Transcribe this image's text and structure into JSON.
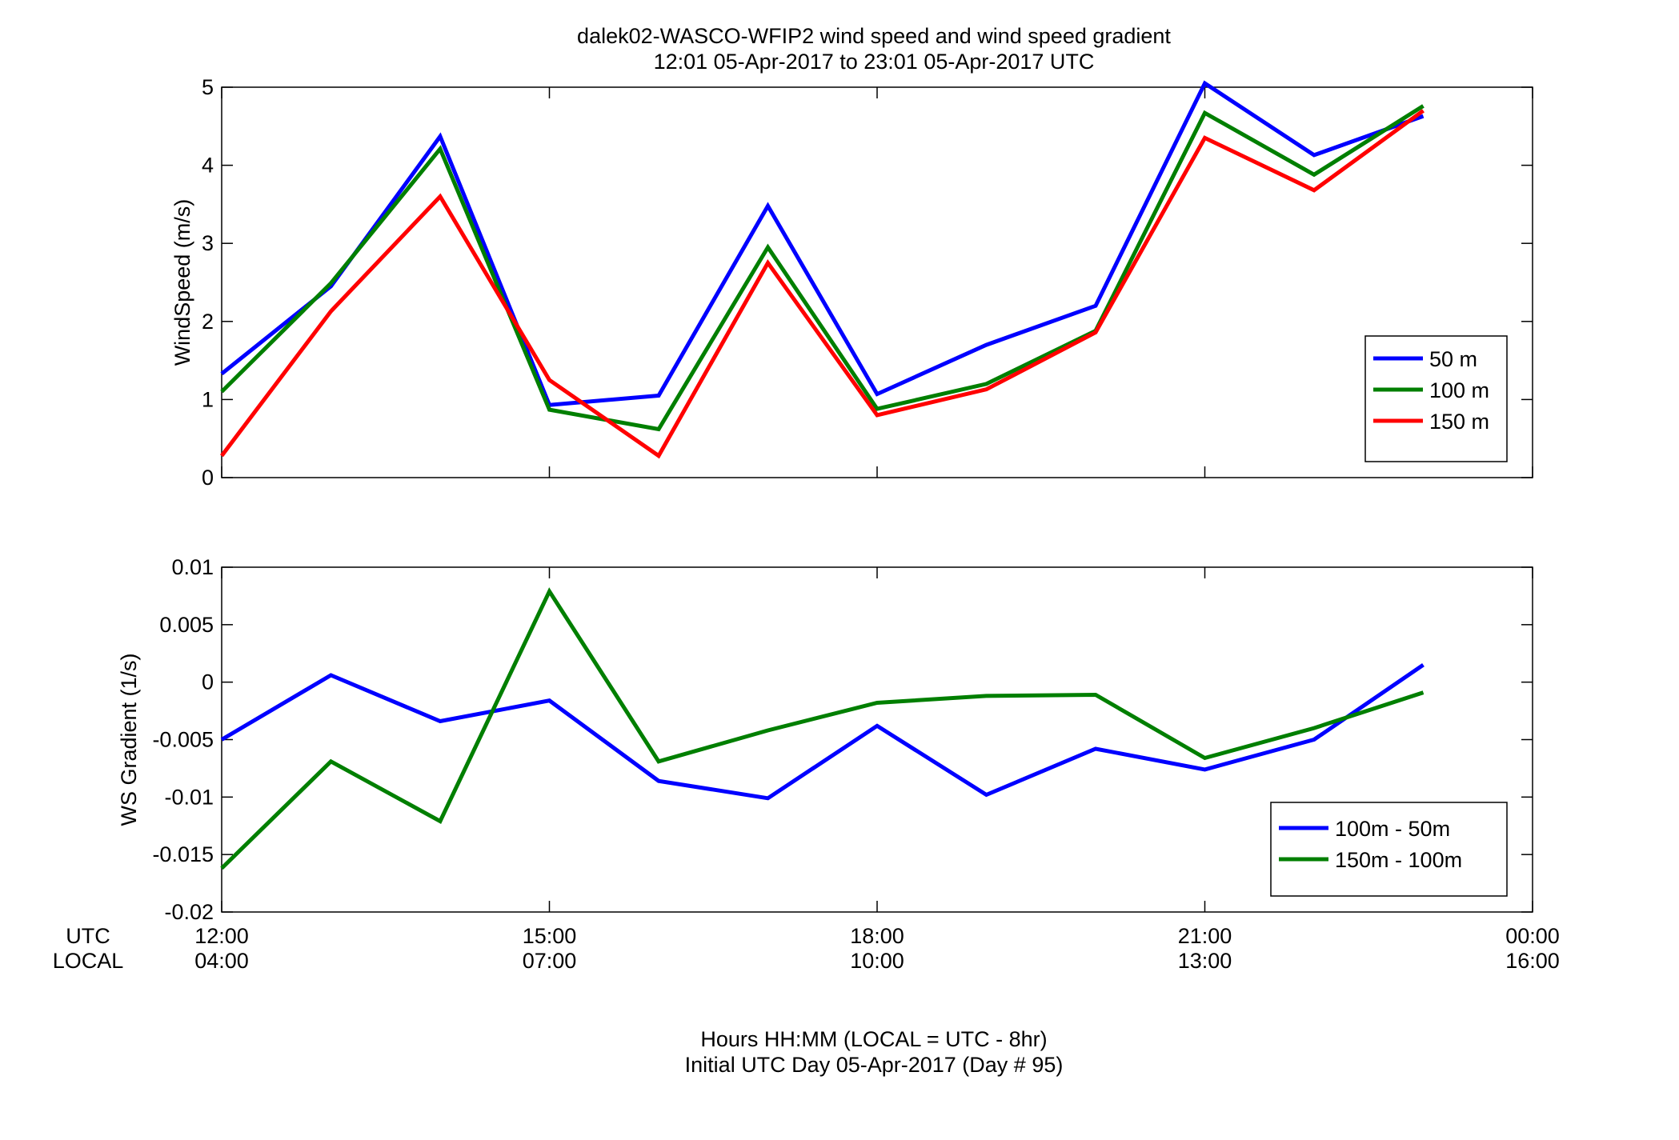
{
  "figure": {
    "title_line1": "dalek02-WASCO-WFIP2  wind speed and wind speed gradient",
    "title_line2": "12:01 05-Apr-2017 to 23:01 05-Apr-2017  UTC",
    "xlabel_line1": "Hours HH:MM  (LOCAL = UTC - 8hr)",
    "xlabel_line2": "Initial UTC Day 05-Apr-2017 (Day # 95)",
    "row_label_utc": "UTC",
    "row_label_local": "LOCAL"
  },
  "chart_data": [
    {
      "type": "line",
      "title": "",
      "ylabel": "WindSpeed (m/s)",
      "xlim": [
        12,
        24
      ],
      "ylim": [
        0,
        5
      ],
      "yticks": [
        0,
        1,
        2,
        3,
        4,
        5
      ],
      "ytick_labels": [
        "0",
        "1",
        "2",
        "3",
        "4",
        "5"
      ],
      "grid": false,
      "legend": "bottom-right",
      "x": [
        12,
        13,
        14,
        15,
        16,
        17,
        18,
        19,
        20,
        21,
        22,
        23
      ],
      "series": [
        {
          "name": "50 m",
          "color": "#0000ff",
          "values": [
            1.33,
            2.45,
            4.37,
            0.93,
            1.05,
            3.48,
            1.07,
            1.7,
            2.2,
            5.05,
            4.13,
            4.63
          ]
        },
        {
          "name": "100 m",
          "color": "#007f00",
          "values": [
            1.1,
            2.49,
            4.21,
            0.87,
            0.62,
            2.95,
            0.88,
            1.2,
            1.88,
            4.67,
            3.88,
            4.76
          ]
        },
        {
          "name": "150 m",
          "color": "#ff0000",
          "values": [
            0.28,
            2.13,
            3.6,
            1.25,
            0.28,
            2.75,
            0.8,
            1.13,
            1.86,
            4.35,
            3.68,
            4.7
          ]
        }
      ]
    },
    {
      "type": "line",
      "title": "",
      "ylabel": "WS Gradient (1/s)",
      "xlim": [
        12,
        24
      ],
      "ylim": [
        -0.02,
        0.01
      ],
      "yticks": [
        -0.02,
        -0.015,
        -0.01,
        -0.005,
        0,
        0.005,
        0.01
      ],
      "ytick_labels": [
        "-0.02",
        "-0.015",
        "-0.01",
        "-0.005",
        "0",
        "0.005",
        "0.01"
      ],
      "grid": false,
      "legend": "bottom-right",
      "x": [
        12,
        13,
        14,
        15,
        16,
        17,
        18,
        19,
        20,
        21,
        22,
        23
      ],
      "series": [
        {
          "name": "100m - 50m",
          "color": "#0000ff",
          "values": [
            -0.005,
            0.0006,
            -0.0034,
            -0.0016,
            -0.0086,
            -0.0101,
            -0.0038,
            -0.0098,
            -0.0058,
            -0.0076,
            -0.005,
            0.0015
          ]
        },
        {
          "name": "150m - 100m",
          "color": "#007f00",
          "values": [
            -0.0162,
            -0.0069,
            -0.0121,
            0.0079,
            -0.0069,
            -0.0042,
            -0.0018,
            -0.0012,
            -0.0011,
            -0.0066,
            -0.004,
            -0.0009
          ]
        }
      ],
      "xticks": [
        12,
        15,
        18,
        21,
        24
      ],
      "xtick_labels_utc": [
        "12:00",
        "15:00",
        "18:00",
        "21:00",
        "00:00"
      ],
      "xtick_labels_local": [
        "04:00",
        "07:00",
        "10:00",
        "13:00",
        "16:00"
      ]
    }
  ]
}
